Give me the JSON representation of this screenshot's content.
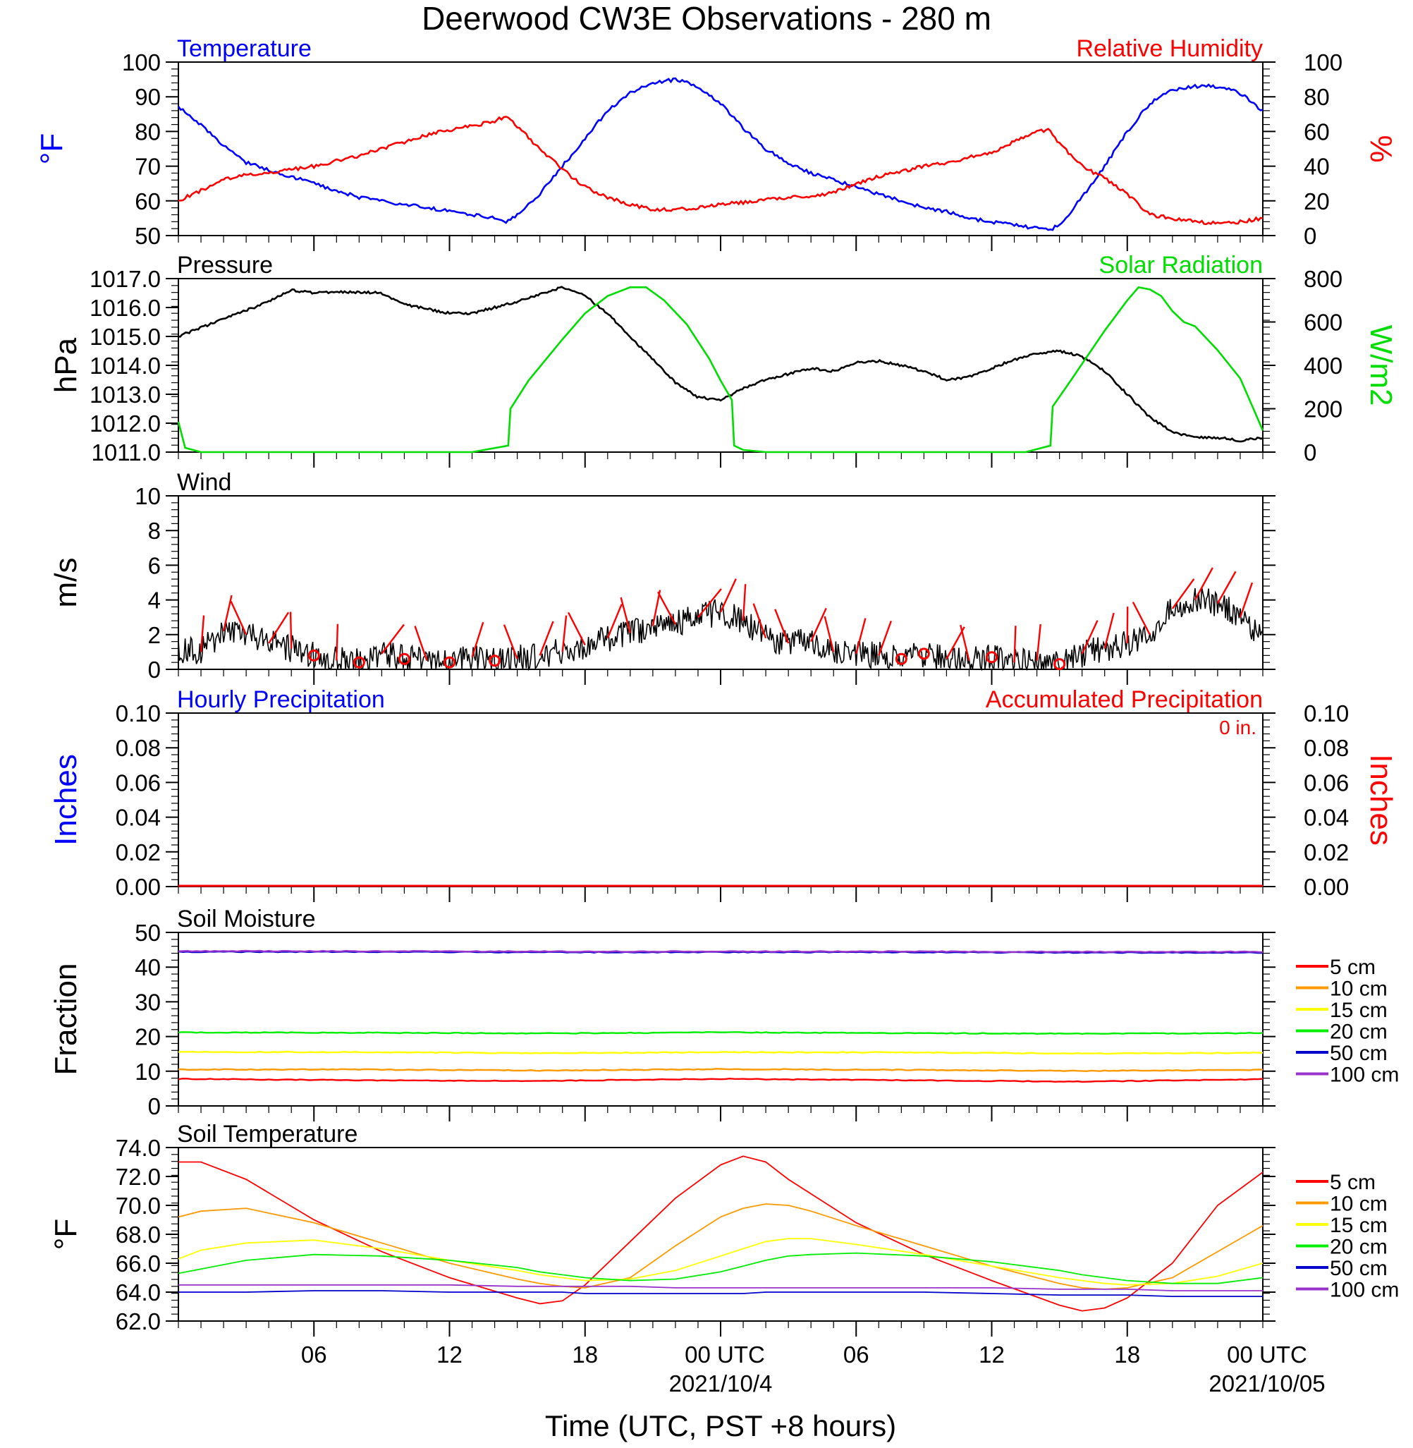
{
  "title": "Deerwood CW3E Observations - 280 m",
  "xaxis": {
    "title": "Time (UTC, PST +8 hours)",
    "tick_labels": [
      "06",
      "12",
      "18",
      "00 UTC",
      "06",
      "12",
      "18",
      "00 UTC"
    ],
    "date_labels": [
      "2021/10/4",
      "2021/10/05"
    ]
  },
  "colors": {
    "temperature": "#0000ff",
    "humidity": "#ff0000",
    "pressure": "#000000",
    "solar": "#00dd00",
    "wind": "#000000",
    "barb": "#ff0000",
    "hourly_precip": "#0000ff",
    "accum_precip": "#ff0000",
    "depth_5": "#ff0000",
    "depth_10": "#ff9900",
    "depth_15": "#ffff00",
    "depth_20": "#00ee00",
    "depth_50": "#0000cc",
    "depth_100": "#9933cc"
  },
  "chart_data": [
    {
      "id": "temp-rh",
      "type": "line",
      "left_title": "Temperature",
      "right_title": "Relative Humidity",
      "left_unit": "°F",
      "right_unit": "%",
      "left_ylim": [
        50,
        100
      ],
      "right_ylim": [
        0,
        100
      ],
      "left_ticks": [
        "50",
        "60",
        "70",
        "80",
        "90",
        "100"
      ],
      "right_ticks": [
        "0",
        "20",
        "40",
        "60",
        "80",
        "100"
      ],
      "x_hours": [
        0,
        1,
        2,
        3,
        4,
        5,
        6,
        7,
        8,
        9,
        10,
        11,
        12,
        13,
        14,
        14.5,
        15,
        16,
        17,
        18,
        19,
        20,
        21,
        22,
        23,
        24,
        25,
        26,
        27,
        28,
        29,
        30,
        31,
        32,
        33,
        34,
        35,
        36,
        37,
        38,
        38.5,
        39,
        40,
        41,
        42,
        43,
        44,
        45,
        46,
        47,
        48
      ],
      "series": [
        {
          "name": "Temperature",
          "axis": "left",
          "values": [
            87,
            82,
            76,
            71,
            69,
            67,
            65,
            63,
            61,
            60,
            59,
            58,
            57,
            56,
            55,
            54,
            56,
            62,
            70,
            78,
            86,
            91,
            94,
            95,
            93,
            88,
            81,
            75,
            71,
            68,
            66,
            64,
            62,
            60,
            58,
            57,
            55,
            54,
            53,
            52,
            51.5,
            53,
            61,
            70,
            80,
            88,
            92,
            93,
            93,
            91,
            86
          ]
        },
        {
          "name": "Relative Humidity",
          "axis": "right",
          "values": [
            20,
            26,
            32,
            35,
            36,
            38,
            40,
            43,
            46,
            50,
            54,
            58,
            61,
            63,
            66,
            69,
            63,
            50,
            38,
            28,
            22,
            18,
            15,
            15,
            16,
            18,
            19,
            21,
            22,
            22,
            25,
            30,
            34,
            37,
            40,
            42,
            45,
            48,
            54,
            60,
            61,
            53,
            40,
            33,
            24,
            12,
            10,
            8,
            7,
            8,
            10
          ]
        }
      ]
    },
    {
      "id": "pressure-solar",
      "type": "line",
      "left_title": "Pressure",
      "right_title": "Solar Radiation",
      "left_unit": "hPa",
      "right_unit": "W/m2",
      "left_ylim": [
        1011,
        1017
      ],
      "right_ylim": [
        0,
        800
      ],
      "left_ticks": [
        "1011.0",
        "1012.0",
        "1013.0",
        "1014.0",
        "1015.0",
        "1016.0",
        "1017.0"
      ],
      "right_ticks": [
        "0",
        "200",
        "400",
        "600",
        "800"
      ],
      "series": [
        {
          "name": "Pressure",
          "axis": "left",
          "x_hours": [
            0,
            2,
            4,
            5,
            6,
            7,
            9,
            10,
            12,
            13,
            14,
            15,
            17,
            18,
            19,
            20,
            21,
            22,
            23,
            24,
            25,
            26,
            27,
            28,
            29,
            30,
            31,
            32,
            33,
            34,
            35,
            36,
            37,
            38,
            39,
            40,
            41,
            42,
            43,
            44,
            45,
            46,
            47,
            48
          ],
          "values": [
            1015.0,
            1015.6,
            1016.2,
            1016.6,
            1016.5,
            1016.55,
            1016.5,
            1016.1,
            1015.8,
            1015.8,
            1016.0,
            1016.2,
            1016.7,
            1016.4,
            1015.8,
            1015.0,
            1014.2,
            1013.4,
            1012.9,
            1012.8,
            1013.2,
            1013.5,
            1013.7,
            1013.9,
            1013.8,
            1014.1,
            1014.15,
            1014.0,
            1013.8,
            1013.5,
            1013.6,
            1013.9,
            1014.2,
            1014.4,
            1014.5,
            1014.3,
            1013.8,
            1013.0,
            1012.2,
            1011.7,
            1011.5,
            1011.5,
            1011.4,
            1011.5
          ]
        },
        {
          "name": "Solar Radiation",
          "axis": "right",
          "x_hours": [
            0,
            0.3,
            1,
            13,
            14.6,
            14.7,
            15.5,
            17,
            18,
            19,
            20,
            20.7,
            21.5,
            22.5,
            23.5,
            24,
            24.5,
            24.6,
            25,
            26,
            37.5,
            38.6,
            38.7,
            39.5,
            41,
            42,
            42.5,
            43,
            43.5,
            44,
            44.5,
            45,
            46,
            47,
            48
          ],
          "values": [
            140,
            20,
            0,
            0,
            30,
            200,
            330,
            520,
            640,
            720,
            760,
            760,
            700,
            590,
            430,
            330,
            240,
            30,
            10,
            0,
            0,
            30,
            210,
            330,
            560,
            700,
            760,
            750,
            720,
            650,
            600,
            580,
            470,
            340,
            100
          ]
        }
      ]
    },
    {
      "id": "wind",
      "type": "line",
      "left_title": "Wind",
      "left_unit": "m/s",
      "left_ylim": [
        0,
        10
      ],
      "left_ticks": [
        "0",
        "2",
        "4",
        "6",
        "8",
        "10"
      ],
      "x_hours": [
        0,
        1,
        2,
        3,
        4,
        5,
        6,
        7,
        8,
        9,
        10,
        11,
        12,
        13,
        14,
        15,
        16,
        17,
        18,
        19,
        20,
        21,
        22,
        23,
        24,
        25,
        26,
        27,
        28,
        29,
        30,
        31,
        32,
        33,
        34,
        35,
        36,
        37,
        38,
        39,
        40,
        41,
        42,
        43,
        44,
        45,
        46,
        47,
        48
      ],
      "series": [
        {
          "name": "Wind Speed",
          "values": [
            1.2,
            1.0,
            2.2,
            2.0,
            1.5,
            1.2,
            0.8,
            0.5,
            0.4,
            0.9,
            0.6,
            0.5,
            0.4,
            0.7,
            0.5,
            0.6,
            0.8,
            1.0,
            1.4,
            1.8,
            2.1,
            2.5,
            2.6,
            3.0,
            3.3,
            2.8,
            1.8,
            1.5,
            1.6,
            1.0,
            0.9,
            0.8,
            0.6,
            0.9,
            0.6,
            0.5,
            0.7,
            0.4,
            0.5,
            0.3,
            0.9,
            1.2,
            1.5,
            2.0,
            3.5,
            4.0,
            3.8,
            3.0,
            1.8
          ]
        }
      ],
      "calm_hours": [
        6,
        8,
        10,
        12,
        14,
        32,
        33,
        36,
        39
      ]
    },
    {
      "id": "precip",
      "type": "line",
      "left_title": "Hourly Precipitation",
      "right_title": "Accumulated Precipitation",
      "total_label": "0 in.",
      "left_unit": "Inches",
      "right_unit": "Inches",
      "left_ylim": [
        0,
        0.1
      ],
      "right_ylim": [
        0,
        0.1
      ],
      "left_ticks": [
        "0.00",
        "0.02",
        "0.04",
        "0.06",
        "0.08",
        "0.10"
      ],
      "right_ticks": [
        "0.00",
        "0.02",
        "0.04",
        "0.06",
        "0.08",
        "0.10"
      ],
      "x_hours": [
        0,
        48
      ],
      "series": [
        {
          "name": "Hourly Precipitation",
          "values": [
            0,
            0
          ]
        },
        {
          "name": "Accumulated Precipitation",
          "values": [
            0,
            0
          ]
        }
      ]
    },
    {
      "id": "soil-moisture",
      "type": "line",
      "left_title": "Soil Moisture",
      "left_unit": "Fraction",
      "left_ylim": [
        0,
        50
      ],
      "left_ticks": [
        "0",
        "10",
        "20",
        "30",
        "40",
        "50"
      ],
      "x_hours": [
        0,
        8,
        16,
        24,
        32,
        40,
        48
      ],
      "series": [
        {
          "name": "5 cm",
          "values": [
            7.8,
            7.4,
            7.2,
            7.8,
            7.4,
            7.0,
            7.7
          ]
        },
        {
          "name": "10 cm",
          "values": [
            10.5,
            10.5,
            10.2,
            10.6,
            10.4,
            10.1,
            10.4
          ]
        },
        {
          "name": "15 cm",
          "values": [
            15.5,
            15.5,
            15.2,
            15.5,
            15.4,
            15.1,
            15.3
          ]
        },
        {
          "name": "20 cm",
          "values": [
            21.2,
            21.1,
            20.9,
            21.2,
            21.0,
            20.8,
            21.0
          ]
        },
        {
          "name": "50 cm",
          "values": [
            44.4,
            44.4,
            44.3,
            44.3,
            44.3,
            44.2,
            44.2
          ]
        },
        {
          "name": "100 cm",
          "values": [
            44.6,
            44.6,
            44.5,
            44.5,
            44.5,
            44.4,
            44.4
          ]
        }
      ]
    },
    {
      "id": "soil-temperature",
      "type": "line",
      "left_title": "Soil Temperature",
      "left_unit": "°F",
      "left_ylim": [
        62,
        74
      ],
      "left_ticks": [
        "62.0",
        "64.0",
        "66.0",
        "68.0",
        "70.0",
        "72.0",
        "74.0"
      ],
      "x_hours": [
        0,
        1,
        3,
        6,
        9,
        12,
        15,
        16,
        17,
        18,
        20,
        22,
        24,
        25,
        26,
        27,
        28,
        30,
        33,
        36,
        39,
        40,
        41,
        42,
        44,
        46,
        48
      ],
      "series": [
        {
          "name": "5 cm",
          "values": [
            73.0,
            73.0,
            71.8,
            69.0,
            66.8,
            65.0,
            63.6,
            63.2,
            63.4,
            64.5,
            67.5,
            70.5,
            72.8,
            73.4,
            73.0,
            71.8,
            70.8,
            68.8,
            66.6,
            64.8,
            63.1,
            62.7,
            62.9,
            63.6,
            66.0,
            70.0,
            72.3
          ]
        },
        {
          "name": "10 cm",
          "values": [
            69.2,
            69.6,
            69.8,
            68.8,
            67.4,
            66.0,
            64.9,
            64.6,
            64.4,
            64.3,
            65.0,
            67.2,
            69.2,
            69.8,
            70.1,
            70.0,
            69.6,
            68.6,
            67.2,
            65.8,
            64.6,
            64.3,
            64.2,
            64.3,
            65.0,
            66.8,
            68.6
          ]
        },
        {
          "name": "15 cm",
          "values": [
            66.3,
            66.9,
            67.4,
            67.6,
            67.0,
            66.2,
            65.5,
            65.2,
            65.0,
            64.8,
            64.9,
            65.5,
            66.5,
            67.0,
            67.5,
            67.7,
            67.7,
            67.3,
            66.6,
            65.8,
            65.0,
            64.8,
            64.6,
            64.5,
            64.6,
            65.1,
            66.0
          ]
        },
        {
          "name": "20 cm",
          "values": [
            65.3,
            65.6,
            66.2,
            66.6,
            66.5,
            66.2,
            65.7,
            65.4,
            65.2,
            65.0,
            64.8,
            64.9,
            65.4,
            65.8,
            66.2,
            66.5,
            66.6,
            66.7,
            66.5,
            66.1,
            65.5,
            65.2,
            65.0,
            64.8,
            64.6,
            64.6,
            65.0
          ]
        },
        {
          "name": "50 cm",
          "values": [
            64.0,
            64.0,
            64.0,
            64.1,
            64.1,
            64.0,
            64.0,
            64.0,
            64.0,
            63.9,
            63.9,
            63.9,
            63.9,
            63.9,
            64.0,
            64.0,
            64.0,
            64.0,
            64.0,
            63.9,
            63.8,
            63.8,
            63.8,
            63.8,
            63.7,
            63.7,
            63.7
          ]
        },
        {
          "name": "100 cm",
          "values": [
            64.5,
            64.5,
            64.5,
            64.5,
            64.5,
            64.5,
            64.4,
            64.4,
            64.4,
            64.4,
            64.4,
            64.3,
            64.3,
            64.3,
            64.3,
            64.3,
            64.3,
            64.3,
            64.3,
            64.3,
            64.2,
            64.2,
            64.2,
            64.2,
            64.1,
            64.1,
            64.1
          ]
        }
      ]
    }
  ]
}
